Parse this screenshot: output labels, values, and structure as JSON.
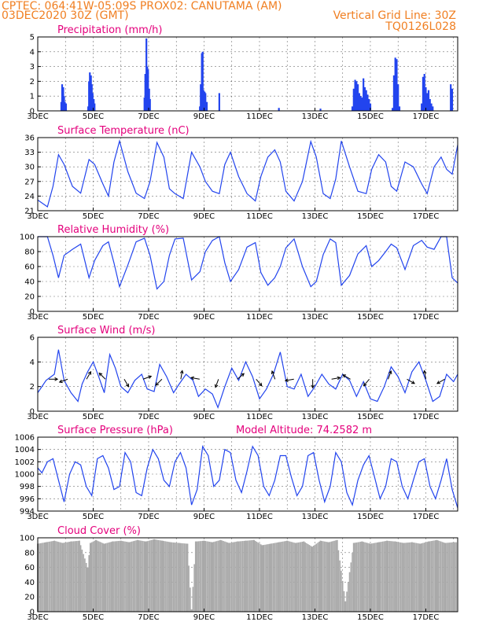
{
  "header": {
    "line1": "CPTEC:   064:41W-05:09S   PROX02: CANUTAMA (AM)",
    "line2": "03DEC2020 30Z (GMT)",
    "grid_note": "Vertical Grid Line: 30Z",
    "run_code": "TQ0126L028"
  },
  "colors": {
    "header": "#f07f22",
    "title": "#e4007c",
    "series": "#2244ee",
    "cloud": "#a9a9a9"
  },
  "chart_data": [
    {
      "type": "bar",
      "title": "Precipitation (mm/h)",
      "xticks": [
        "3DEC",
        "5DEC",
        "7DEC",
        "9DEC",
        "11DEC",
        "13DEC",
        "15DEC",
        "17DEC"
      ],
      "xlim_days": [
        3,
        18.15
      ],
      "ylim": [
        0,
        5
      ],
      "yticks": [
        0,
        1,
        2,
        3,
        4,
        5
      ],
      "grid": true,
      "x": [
        3.85,
        3.88,
        3.92,
        3.95,
        3.98,
        4.02,
        4.82,
        4.85,
        4.88,
        4.92,
        4.95,
        4.98,
        5.02,
        5.05,
        6.85,
        6.88,
        6.92,
        6.95,
        6.98,
        7.02,
        7.05,
        8.85,
        8.88,
        8.92,
        8.95,
        8.98,
        9.02,
        9.05,
        9.1,
        9.55,
        11.7,
        13.2,
        14.35,
        14.4,
        14.45,
        14.5,
        14.55,
        14.6,
        14.65,
        14.7,
        14.75,
        14.8,
        14.85,
        14.9,
        14.95,
        15.0,
        15.8,
        15.85,
        15.9,
        15.95,
        16.0,
        16.05,
        16.85,
        16.9,
        16.95,
        17.0,
        17.05,
        17.1,
        17.15,
        17.2,
        17.25,
        17.9,
        17.95
      ],
      "values": [
        0.6,
        1.8,
        1.6,
        1.0,
        0.6,
        0.5,
        0.3,
        2.0,
        2.6,
        2.4,
        1.8,
        1.2,
        0.8,
        0.5,
        0.9,
        2.5,
        4.9,
        3.0,
        2.8,
        1.5,
        0.8,
        0.3,
        1.8,
        3.9,
        4.0,
        1.4,
        1.3,
        1.2,
        0.6,
        1.2,
        0.2,
        0.15,
        0.3,
        1.5,
        2.1,
        2.0,
        1.8,
        1.2,
        1.0,
        0.9,
        2.2,
        1.6,
        1.4,
        1.1,
        0.8,
        0.5,
        0.2,
        2.4,
        3.6,
        3.5,
        1.8,
        0.3,
        0.5,
        2.3,
        2.5,
        1.6,
        1.2,
        1.4,
        0.8,
        0.5,
        0.3,
        1.8,
        1.5
      ]
    },
    {
      "type": "line",
      "title": "Surface Temperature (nC)",
      "xticks": [
        "3DEC",
        "5DEC",
        "7DEC",
        "9DEC",
        "11DEC",
        "13DEC",
        "15DEC",
        "17DEC"
      ],
      "xlim_days": [
        3,
        18.15
      ],
      "ylim": [
        21,
        36
      ],
      "yticks": [
        21,
        24,
        27,
        30,
        33,
        36
      ],
      "grid": true,
      "x": [
        3.0,
        3.35,
        3.55,
        3.75,
        3.95,
        4.25,
        4.55,
        4.85,
        5.05,
        5.35,
        5.55,
        5.75,
        5.95,
        6.25,
        6.55,
        6.85,
        7.05,
        7.3,
        7.55,
        7.75,
        7.95,
        8.25,
        8.55,
        8.85,
        9.05,
        9.3,
        9.55,
        9.75,
        9.95,
        10.25,
        10.55,
        10.85,
        11.05,
        11.3,
        11.55,
        11.75,
        11.95,
        12.25,
        12.55,
        12.85,
        13.05,
        13.3,
        13.55,
        13.75,
        13.95,
        14.25,
        14.55,
        14.85,
        15.05,
        15.3,
        15.55,
        15.75,
        15.95,
        16.25,
        16.55,
        16.85,
        17.05,
        17.3,
        17.55,
        17.75,
        17.95,
        18.15
      ],
      "values": [
        23.2,
        21.8,
        26,
        32.5,
        30.5,
        26,
        24.6,
        31.5,
        30.5,
        26.5,
        24,
        31,
        35.3,
        29,
        24.6,
        23.5,
        27,
        35,
        32,
        25.5,
        24.5,
        23.5,
        33,
        30,
        27,
        25,
        24.5,
        30.5,
        33,
        28,
        24.5,
        23,
        28,
        32,
        33.5,
        31,
        25,
        23,
        27,
        35.2,
        32,
        24.5,
        23.5,
        27.5,
        35.3,
        30,
        25,
        24.5,
        29.5,
        32.5,
        31,
        26,
        25,
        31,
        30,
        26.5,
        24.5,
        30,
        32,
        29.5,
        28.5,
        34.5
      ]
    },
    {
      "type": "line",
      "title": "Relative Humidity (%)",
      "xticks": [
        "3DEC",
        "5DEC",
        "7DEC",
        "9DEC",
        "11DEC",
        "13DEC",
        "15DEC",
        "17DEC"
      ],
      "xlim_days": [
        3,
        18.15
      ],
      "ylim": [
        0,
        100
      ],
      "yticks": [
        0,
        20,
        40,
        60,
        80,
        100
      ],
      "grid": true,
      "x": [
        3.0,
        3.35,
        3.55,
        3.75,
        3.95,
        4.25,
        4.55,
        4.85,
        5.05,
        5.35,
        5.55,
        5.75,
        5.95,
        6.25,
        6.55,
        6.85,
        7.05,
        7.3,
        7.55,
        7.75,
        7.95,
        8.25,
        8.55,
        8.85,
        9.05,
        9.3,
        9.55,
        9.75,
        9.95,
        10.25,
        10.55,
        10.85,
        11.05,
        11.3,
        11.55,
        11.75,
        11.95,
        12.25,
        12.55,
        12.85,
        13.05,
        13.3,
        13.55,
        13.75,
        13.95,
        14.25,
        14.55,
        14.85,
        15.05,
        15.3,
        15.55,
        15.75,
        15.95,
        16.25,
        16.55,
        16.85,
        17.05,
        17.3,
        17.55,
        17.75,
        17.95,
        18.15
      ],
      "values": [
        100,
        100,
        75,
        45,
        75,
        83,
        90,
        45,
        68,
        88,
        93,
        65,
        33,
        62,
        93,
        98,
        75,
        30,
        40,
        75,
        97,
        98,
        42,
        53,
        80,
        95,
        100,
        65,
        40,
        56,
        86,
        92,
        52,
        35,
        45,
        60,
        85,
        97,
        60,
        33,
        40,
        76,
        97,
        92,
        35,
        48,
        77,
        88,
        60,
        68,
        80,
        90,
        85,
        56,
        88,
        95,
        86,
        83,
        100,
        100,
        45,
        38
      ]
    },
    {
      "type": "line",
      "title": "Surface Wind (m/s)",
      "xticks": [
        "3DEC",
        "5DEC",
        "7DEC",
        "9DEC",
        "11DEC",
        "13DEC",
        "15DEC",
        "17DEC"
      ],
      "xlim_days": [
        3,
        18.15
      ],
      "ylim": [
        0,
        6
      ],
      "yticks": [
        0,
        2,
        4,
        6
      ],
      "grid": true,
      "x": [
        3.0,
        3.3,
        3.6,
        3.75,
        3.95,
        4.2,
        4.45,
        4.6,
        4.8,
        5.0,
        5.2,
        5.4,
        5.6,
        5.8,
        6.0,
        6.25,
        6.5,
        6.75,
        6.95,
        7.2,
        7.4,
        7.65,
        7.9,
        8.1,
        8.35,
        8.6,
        8.8,
        9.05,
        9.3,
        9.5,
        9.75,
        10.0,
        10.25,
        10.5,
        10.75,
        11.0,
        11.25,
        11.5,
        11.75,
        12.0,
        12.25,
        12.5,
        12.75,
        13.0,
        13.25,
        13.5,
        13.75,
        14.0,
        14.25,
        14.5,
        14.75,
        15.0,
        15.25,
        15.5,
        15.75,
        16.0,
        16.25,
        16.5,
        16.75,
        17.0,
        17.25,
        17.5,
        17.75,
        18.0,
        18.15
      ],
      "values": [
        1.5,
        2.5,
        3.0,
        5.0,
        2.5,
        1.5,
        0.8,
        2.2,
        3.2,
        4.0,
        2.8,
        1.5,
        4.6,
        3.5,
        2.0,
        1.5,
        2.5,
        3.0,
        1.8,
        1.6,
        3.8,
        2.8,
        1.5,
        2.2,
        3.0,
        2.5,
        1.2,
        1.8,
        1.4,
        0.3,
        2.0,
        3.5,
        2.5,
        4.0,
        2.8,
        1.0,
        1.8,
        3.0,
        4.8,
        2.0,
        1.8,
        3.0,
        1.2,
        2.0,
        3.0,
        2.2,
        1.8,
        3.0,
        2.5,
        1.2,
        2.4,
        1.0,
        0.8,
        2.0,
        3.6,
        2.8,
        1.5,
        3.2,
        4.0,
        2.5,
        0.8,
        1.2,
        3.0,
        2.4,
        3.0
      ]
    },
    {
      "type": "line",
      "title": "Surface Pressure (hPa)",
      "annotation": "Model Altitude: 74.2582 m",
      "xticks": [
        "3DEC",
        "5DEC",
        "7DEC",
        "9DEC",
        "11DEC",
        "13DEC",
        "15DEC",
        "17DEC"
      ],
      "xlim_days": [
        3,
        18.15
      ],
      "ylim": [
        994,
        1006
      ],
      "yticks": [
        994,
        996,
        998,
        1000,
        1002,
        1004,
        1006
      ],
      "grid": true,
      "x": [
        3.0,
        3.15,
        3.35,
        3.55,
        3.75,
        3.95,
        4.15,
        4.35,
        4.55,
        4.75,
        4.95,
        5.15,
        5.35,
        5.55,
        5.75,
        5.95,
        6.15,
        6.35,
        6.55,
        6.75,
        6.95,
        7.15,
        7.35,
        7.55,
        7.75,
        7.95,
        8.15,
        8.35,
        8.55,
        8.75,
        8.95,
        9.15,
        9.35,
        9.55,
        9.75,
        9.95,
        10.15,
        10.35,
        10.55,
        10.75,
        10.95,
        11.15,
        11.35,
        11.55,
        11.75,
        11.95,
        12.15,
        12.35,
        12.55,
        12.75,
        12.95,
        13.15,
        13.35,
        13.55,
        13.75,
        13.95,
        14.15,
        14.35,
        14.55,
        14.75,
        14.95,
        15.15,
        15.35,
        15.55,
        15.75,
        15.95,
        16.15,
        16.35,
        16.55,
        16.75,
        16.95,
        17.15,
        17.35,
        17.55,
        17.75,
        17.95,
        18.15
      ],
      "values": [
        1001,
        1000.2,
        1002,
        1002.5,
        999,
        995.5,
        1000,
        1002,
        1001.5,
        998,
        996.5,
        1002.5,
        1003,
        1001,
        997.5,
        998,
        1003.5,
        1002,
        997,
        996.5,
        1001,
        1004,
        1002.5,
        999,
        998,
        1002,
        1003.5,
        1001,
        995,
        997.5,
        1004.5,
        1003,
        998,
        999,
        1004,
        1003.5,
        999,
        997,
        1000.5,
        1004.5,
        1003,
        998,
        996.5,
        999,
        1003,
        1003,
        999.5,
        996.5,
        998,
        1003,
        1003.5,
        999,
        995.5,
        998,
        1003.5,
        1002,
        997,
        995,
        999,
        1001.5,
        1003,
        999.5,
        996,
        998,
        1002.5,
        1002,
        998,
        996,
        999,
        1002,
        1002.5,
        998,
        996,
        999,
        1002.5,
        997.5,
        994.5
      ]
    },
    {
      "type": "bar",
      "title": "Cloud Cover (%)",
      "xticks": [
        "3DEC",
        "5DEC",
        "7DEC",
        "9DEC",
        "11DEC",
        "13DEC",
        "15DEC",
        "17DEC"
      ],
      "xlim_days": [
        3,
        18.15
      ],
      "ylim": [
        0,
        100
      ],
      "yticks": [
        0,
        20,
        40,
        60,
        80,
        100
      ],
      "grid": true,
      "x": [
        3.0,
        3.3,
        3.6,
        3.9,
        4.2,
        4.5,
        4.8,
        4.9,
        5.1,
        5.4,
        5.7,
        6.0,
        6.3,
        6.6,
        6.9,
        7.2,
        7.5,
        7.8,
        8.1,
        8.4,
        8.55,
        8.7,
        9.0,
        9.3,
        9.6,
        9.9,
        10.2,
        10.5,
        10.8,
        11.1,
        11.4,
        11.7,
        12.0,
        12.3,
        12.6,
        12.9,
        13.2,
        13.5,
        13.8,
        14.1,
        14.4,
        14.7,
        15.0,
        15.3,
        15.6,
        15.9,
        16.2,
        16.5,
        16.8,
        17.1,
        17.4,
        17.7,
        18.0
      ],
      "values": [
        92,
        94,
        96,
        93,
        95,
        96,
        60,
        93,
        97,
        92,
        95,
        96,
        94,
        97,
        95,
        98,
        96,
        94,
        93,
        92,
        3,
        95,
        96,
        94,
        97,
        93,
        95,
        96,
        97,
        90,
        92,
        94,
        96,
        93,
        95,
        88,
        96,
        94,
        97,
        14,
        93,
        95,
        92,
        94,
        96,
        95,
        93,
        94,
        92,
        95,
        97,
        93,
        94
      ]
    }
  ]
}
